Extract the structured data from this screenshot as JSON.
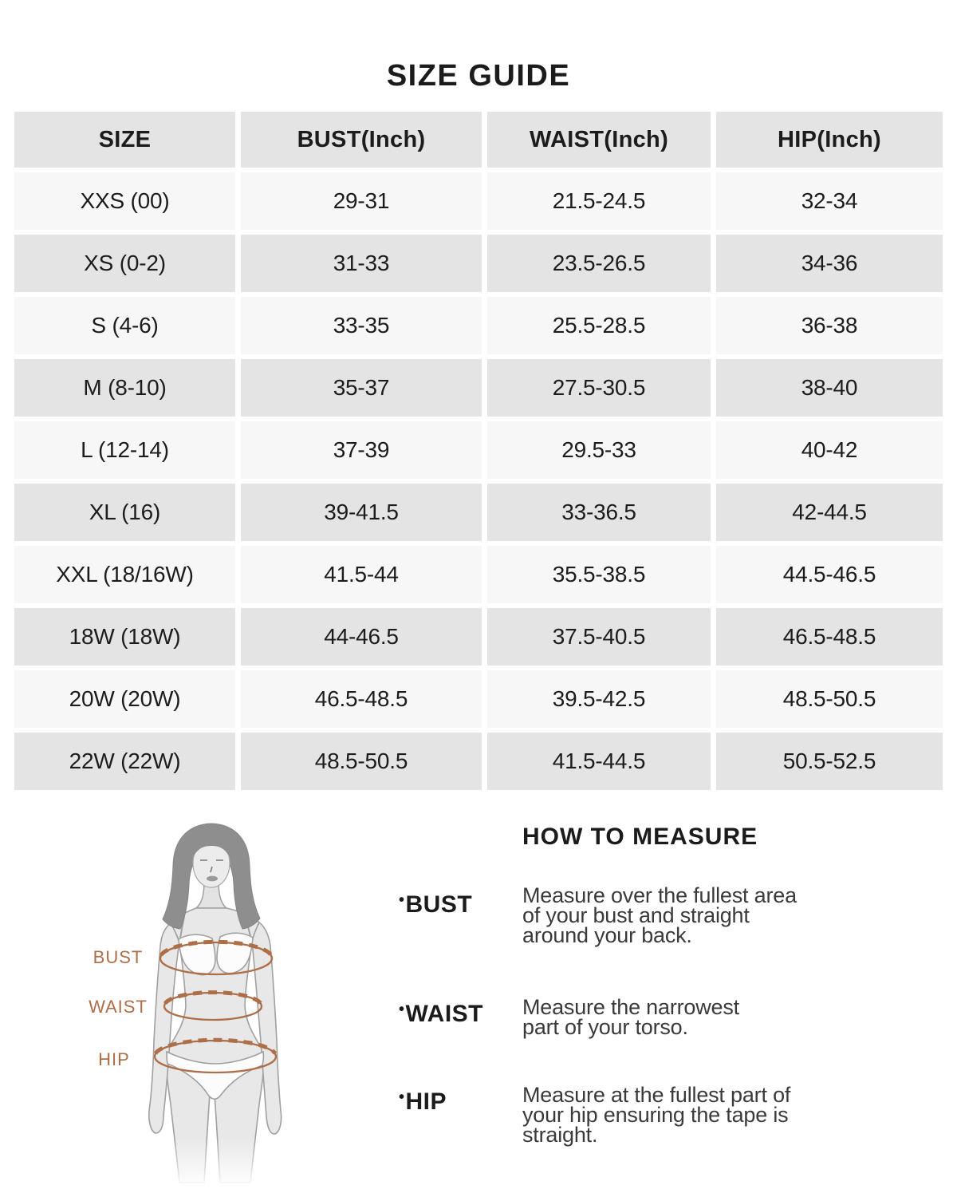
{
  "title": "SIZE GUIDE",
  "table": {
    "headers": [
      "SIZE",
      "BUST(Inch)",
      "WAIST(Inch)",
      "HIP(Inch)"
    ],
    "rows": [
      [
        "XXS (00)",
        "29-31",
        "21.5-24.5",
        "32-34"
      ],
      [
        "XS (0-2)",
        "31-33",
        "23.5-26.5",
        "34-36"
      ],
      [
        "S (4-6)",
        "33-35",
        "25.5-28.5",
        "36-38"
      ],
      [
        "M (8-10)",
        "35-37",
        "27.5-30.5",
        "38-40"
      ],
      [
        "L (12-14)",
        "37-39",
        "29.5-33",
        "40-42"
      ],
      [
        "XL (16)",
        "39-41.5",
        "33-36.5",
        "42-44.5"
      ],
      [
        "XXL (18/16W)",
        "41.5-44",
        "35.5-38.5",
        "44.5-46.5"
      ],
      [
        "18W (18W)",
        "44-46.5",
        "37.5-40.5",
        "46.5-48.5"
      ],
      [
        "20W (20W)",
        "46.5-48.5",
        "39.5-42.5",
        "48.5-50.5"
      ],
      [
        "22W (22W)",
        "48.5-50.5",
        "41.5-44.5",
        "50.5-52.5"
      ]
    ]
  },
  "how_to_measure": {
    "heading": "HOW TO MEASURE",
    "items": [
      {
        "label": "BUST",
        "lines": [
          "Measure over the fullest area",
          "of your bust and straight",
          "around your back."
        ]
      },
      {
        "label": "WAIST",
        "lines": [
          "Measure the narrowest",
          "part of your torso."
        ]
      },
      {
        "label": "HIP",
        "lines": [
          "Measure at the fullest part of",
          "your hip ensuring the tape is",
          "straight."
        ]
      }
    ]
  },
  "figure": {
    "labels": {
      "bust": "BUST",
      "waist": "WAIST",
      "hip": "HIP"
    }
  },
  "colors": {
    "accent": "#ad6e48",
    "header_row_bg": "#e4e4e4",
    "alt_row_bg": "#e4e4e4",
    "row_bg": "#f7f7f7",
    "text": "#1c1c1c"
  }
}
